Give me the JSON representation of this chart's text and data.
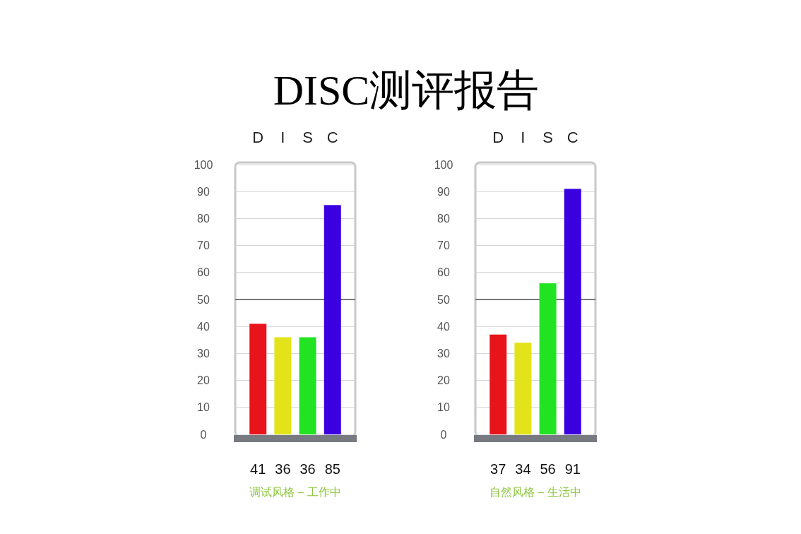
{
  "chart_data": [
    {
      "type": "bar",
      "title": "DISC测评报告",
      "categories": [
        "D",
        "I",
        "S",
        "C"
      ],
      "values": [
        41,
        36,
        36,
        85
      ],
      "colors": [
        "#e8141b",
        "#e3e31c",
        "#22e322",
        "#3a00e0"
      ],
      "ylim": [
        0,
        100
      ],
      "yticks": [
        0,
        10,
        20,
        30,
        40,
        50,
        60,
        70,
        80,
        90,
        100
      ],
      "grid": "y",
      "ref_lines": [
        {
          "axis": "y",
          "value": 50,
          "color": "#777777"
        }
      ],
      "data_labels": true,
      "xlabel": "调试风格 – 工作中"
    },
    {
      "type": "bar",
      "categories": [
        "D",
        "I",
        "S",
        "C"
      ],
      "values": [
        37,
        34,
        56,
        91
      ],
      "colors": [
        "#e8141b",
        "#e3e31c",
        "#22e322",
        "#3a00e0"
      ],
      "ylim": [
        0,
        100
      ],
      "yticks": [
        0,
        10,
        20,
        30,
        40,
        50,
        60,
        70,
        80,
        90,
        100
      ],
      "grid": "y",
      "ref_lines": [
        {
          "axis": "y",
          "value": 50,
          "color": "#777777"
        }
      ],
      "data_labels": true,
      "xlabel": "自然风格 – 生活中"
    }
  ]
}
